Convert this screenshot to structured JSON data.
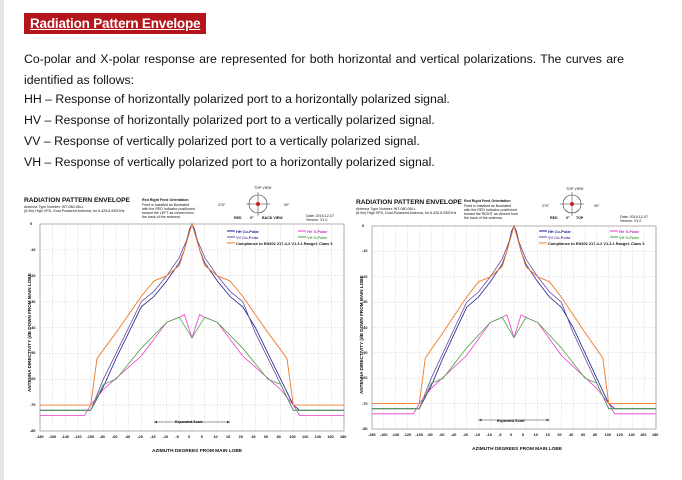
{
  "heading": "Radiation Pattern Envelope",
  "intro": "Co-polar and X-polar response are represented for both horizontal and vertical polarizations. The curves are identified as follows:",
  "definitions": [
    "HH – Response of horizontally polarized port to a horizontally polarized signal.",
    "HV – Response of horizontally polarized port to a vertically polarized signal.",
    "VV – Response of vertically polarized port to a vertically polarized signal.",
    "VH – Response of vertically polarized port to a horizontally polarized signal."
  ],
  "colors": {
    "heading_bg": "#b3151b",
    "hh": "#1a1f8c",
    "vv": "#6a4aa0",
    "hv": "#ee3ad0",
    "vh": "#48a848",
    "envelope": "#ec7a2a",
    "envelope_flat": "#d33a8a"
  },
  "chart_data": [
    {
      "type": "line",
      "title": "RADIATION PATTERN ENVELOPE",
      "subtitle_lines": [
        "Antenna Type Number: WT-080-06LL",
        "(6.0m) High XPD, Dual-Polarized Antenna, for 6.425-6.930GHz"
      ],
      "feed_title": "Red Right Feed Orientation",
      "feed_lines": [
        "Feed is installed as illustrated",
        "with the RED indicator positioned",
        "toward the LEFT as viewed from",
        "the back of the antenna."
      ],
      "top_label": "TOP VIEW",
      "side_labels": [
        "270°",
        "90°"
      ],
      "bottom_labels": [
        "RED",
        "0°",
        "BACK VIEW"
      ],
      "date": "Date: 2019-12-07",
      "version": "Version: V1.0",
      "legend": [
        "HH Co-Polar",
        "HV X-Polar",
        "VV Co-Polar",
        "VH X-Polar"
      ],
      "compliance": "Compliance to EN302 217-4-2 V1.3.1 Range1 Class 3",
      "expanded_scale": "Expanded Scale",
      "xlabel": "AZIMUTH DEGREES FROM MAIN LOBE",
      "ylabel": "ANTENNA DIRECTIVITY (dB DOWN FROM MAIN LOBE",
      "yticks": [
        "0",
        "-10",
        "-20",
        "-30",
        "-40",
        "-50",
        "-60",
        "-70",
        "-80"
      ],
      "xticks": [
        "-180",
        "-160",
        "-140",
        "-120",
        "-100",
        "-80",
        "-60",
        "-40",
        "-20",
        "-15",
        "-10",
        "-5",
        "0",
        "5",
        "10",
        "15",
        "20",
        "40",
        "60",
        "80",
        "100",
        "120",
        "140",
        "160",
        "180"
      ],
      "ylim": [
        -80,
        0
      ],
      "series": [
        {
          "name": "HH Co-Polar",
          "values": [
            [
              -180,
              -72
            ],
            [
              -100,
              -72
            ],
            [
              -80,
              -63
            ],
            [
              -60,
              -52
            ],
            [
              -40,
              -42
            ],
            [
              -20,
              -32
            ],
            [
              -15,
              -28
            ],
            [
              -10,
              -22
            ],
            [
              -5,
              -15
            ],
            [
              -3,
              -10
            ],
            [
              -1,
              -2
            ],
            [
              0,
              0
            ],
            [
              1,
              -2
            ],
            [
              3,
              -10
            ],
            [
              5,
              -15
            ],
            [
              10,
              -22
            ],
            [
              15,
              -28
            ],
            [
              20,
              -32
            ],
            [
              40,
              -40
            ],
            [
              60,
              -50
            ],
            [
              80,
              -60
            ],
            [
              100,
              -70
            ],
            [
              110,
              -72
            ],
            [
              180,
              -72
            ]
          ]
        },
        {
          "name": "VV Co-Polar",
          "values": [
            [
              -180,
              -72
            ],
            [
              -100,
              -72
            ],
            [
              -80,
              -60
            ],
            [
              -60,
              -50
            ],
            [
              -40,
              -40
            ],
            [
              -20,
              -30
            ],
            [
              -15,
              -26
            ],
            [
              -10,
              -20
            ],
            [
              -5,
              -13
            ],
            [
              -2,
              -6
            ],
            [
              0,
              0
            ],
            [
              2,
              -6
            ],
            [
              5,
              -13
            ],
            [
              10,
              -20
            ],
            [
              15,
              -26
            ],
            [
              20,
              -30
            ],
            [
              40,
              -42
            ],
            [
              60,
              -52
            ],
            [
              80,
              -62
            ],
            [
              100,
              -72
            ],
            [
              180,
              -72
            ]
          ]
        },
        {
          "name": "HV X-Polar",
          "values": [
            [
              -180,
              -74
            ],
            [
              -110,
              -74
            ],
            [
              -100,
              -70
            ],
            [
              -80,
              -64
            ],
            [
              -20,
              -51
            ],
            [
              -10,
              -38
            ],
            [
              -5,
              -36
            ],
            [
              -3,
              -35
            ],
            [
              0,
              -44
            ],
            [
              3,
              -35
            ],
            [
              5,
              -36
            ],
            [
              10,
              -38
            ],
            [
              20,
              -51
            ],
            [
              80,
              -64
            ],
            [
              100,
              -70
            ],
            [
              110,
              -74
            ],
            [
              180,
              -74
            ]
          ]
        },
        {
          "name": "VH X-Polar",
          "values": [
            [
              -180,
              -72
            ],
            [
              -100,
              -72
            ],
            [
              -80,
              -62
            ],
            [
              -60,
              -60
            ],
            [
              -20,
              -48
            ],
            [
              -10,
              -38
            ],
            [
              -5,
              -36
            ],
            [
              0,
              -44
            ],
            [
              5,
              -36
            ],
            [
              10,
              -38
            ],
            [
              20,
              -48
            ],
            [
              60,
              -60
            ],
            [
              80,
              -62
            ],
            [
              100,
              -72
            ],
            [
              180,
              -72
            ]
          ]
        },
        {
          "name": "Compliance to EN302 217-4-2 V1.3.1 Range1 Class 3",
          "values": [
            [
              -180,
              -70
            ],
            [
              -100,
              -70
            ],
            [
              -90,
              -52
            ],
            [
              -60,
              -42
            ],
            [
              -20,
              -28
            ],
            [
              -15,
              -22
            ],
            [
              -10,
              -20
            ],
            [
              -5,
              -16
            ],
            [
              -3,
              -10
            ],
            [
              0,
              0
            ],
            [
              3,
              -10
            ],
            [
              5,
              -16
            ],
            [
              10,
              -20
            ],
            [
              15,
              -22
            ],
            [
              20,
              -28
            ],
            [
              60,
              -42
            ],
            [
              90,
              -52
            ],
            [
              100,
              -70
            ],
            [
              180,
              -70
            ]
          ]
        }
      ]
    },
    {
      "type": "line",
      "title": "RADIATION PATTERN ENVELOPE",
      "subtitle_lines": [
        "Antenna Type Number: WT-080-06LL",
        "(6.0m) High XPD, Dual-Polarized Antenna, for 6.425-6.930GHz"
      ],
      "feed_title": "Red Right Feed Orientation",
      "feed_lines": [
        "Feed is installed as illustrated",
        "with the RED indicator positioned",
        "toward the RIGHT as viewed from",
        "the back of the antenna."
      ],
      "top_label": "TOP VIEW",
      "side_labels": [
        "270°",
        "90°"
      ],
      "bottom_labels": [
        "RED",
        "0°",
        "TOP"
      ],
      "date": "Date: 2019-12-07",
      "version": "Version: V1.0",
      "legend": [
        "HH Co-Polar",
        "HV X-Polar",
        "VV Co-Polar",
        "VH X-Polar"
      ],
      "compliance": "Compliance to EN302 217-4-2 V1.3.1 Range1 Class 3",
      "expanded_scale": "Expanded Scale",
      "xlabel": "AZIMUTH DEGREES FROM MAIN LOBE",
      "ylabel": "ANTENNA DIRECTIVITY (dB DOWN FROM MAIN LOBE",
      "yticks": [
        "0",
        "-10",
        "-20",
        "-30",
        "-40",
        "-50",
        "-60",
        "-70",
        "-80"
      ],
      "xticks": [
        "-180",
        "-160",
        "-140",
        "-120",
        "-100",
        "-80",
        "-60",
        "-40",
        "-20",
        "-15",
        "-10",
        "-5",
        "0",
        "5",
        "10",
        "15",
        "20",
        "40",
        "60",
        "80",
        "100",
        "120",
        "140",
        "160",
        "180"
      ],
      "ylim": [
        -80,
        0
      ],
      "series": [
        {
          "name": "HH Co-Polar",
          "values": [
            [
              -180,
              -72
            ],
            [
              -100,
              -72
            ],
            [
              -80,
              -63
            ],
            [
              -60,
              -52
            ],
            [
              -40,
              -42
            ],
            [
              -20,
              -32
            ],
            [
              -15,
              -28
            ],
            [
              -10,
              -22
            ],
            [
              -5,
              -15
            ],
            [
              -3,
              -10
            ],
            [
              -1,
              -2
            ],
            [
              0,
              0
            ],
            [
              1,
              -2
            ],
            [
              3,
              -10
            ],
            [
              5,
              -15
            ],
            [
              10,
              -22
            ],
            [
              15,
              -28
            ],
            [
              20,
              -32
            ],
            [
              40,
              -40
            ],
            [
              60,
              -50
            ],
            [
              80,
              -60
            ],
            [
              100,
              -70
            ],
            [
              110,
              -72
            ],
            [
              180,
              -72
            ]
          ]
        },
        {
          "name": "VV Co-Polar",
          "values": [
            [
              -180,
              -72
            ],
            [
              -100,
              -72
            ],
            [
              -80,
              -60
            ],
            [
              -60,
              -50
            ],
            [
              -40,
              -40
            ],
            [
              -20,
              -30
            ],
            [
              -15,
              -26
            ],
            [
              -10,
              -20
            ],
            [
              -5,
              -13
            ],
            [
              -2,
              -6
            ],
            [
              0,
              0
            ],
            [
              2,
              -6
            ],
            [
              5,
              -13
            ],
            [
              10,
              -20
            ],
            [
              15,
              -26
            ],
            [
              20,
              -30
            ],
            [
              40,
              -42
            ],
            [
              60,
              -52
            ],
            [
              80,
              -62
            ],
            [
              100,
              -72
            ],
            [
              180,
              -72
            ]
          ]
        },
        {
          "name": "HV X-Polar",
          "values": [
            [
              -180,
              -74
            ],
            [
              -110,
              -74
            ],
            [
              -100,
              -70
            ],
            [
              -80,
              -64
            ],
            [
              -20,
              -51
            ],
            [
              -10,
              -38
            ],
            [
              -5,
              -36
            ],
            [
              -3,
              -35
            ],
            [
              0,
              -44
            ],
            [
              3,
              -35
            ],
            [
              5,
              -36
            ],
            [
              10,
              -38
            ],
            [
              20,
              -51
            ],
            [
              80,
              -64
            ],
            [
              100,
              -70
            ],
            [
              110,
              -74
            ],
            [
              180,
              -74
            ]
          ]
        },
        {
          "name": "VH X-Polar",
          "values": [
            [
              -180,
              -72
            ],
            [
              -100,
              -72
            ],
            [
              -80,
              -62
            ],
            [
              -60,
              -60
            ],
            [
              -20,
              -48
            ],
            [
              -10,
              -38
            ],
            [
              -5,
              -36
            ],
            [
              0,
              -44
            ],
            [
              5,
              -36
            ],
            [
              10,
              -38
            ],
            [
              20,
              -48
            ],
            [
              60,
              -60
            ],
            [
              80,
              -62
            ],
            [
              100,
              -72
            ],
            [
              180,
              -72
            ]
          ]
        },
        {
          "name": "Compliance to EN302 217-4-2 V1.3.1 Range1 Class 3",
          "values": [
            [
              -180,
              -70
            ],
            [
              -100,
              -70
            ],
            [
              -90,
              -52
            ],
            [
              -60,
              -42
            ],
            [
              -20,
              -28
            ],
            [
              -15,
              -22
            ],
            [
              -10,
              -20
            ],
            [
              -5,
              -16
            ],
            [
              -3,
              -10
            ],
            [
              0,
              0
            ],
            [
              3,
              -10
            ],
            [
              5,
              -16
            ],
            [
              10,
              -20
            ],
            [
              15,
              -22
            ],
            [
              20,
              -28
            ],
            [
              60,
              -42
            ],
            [
              90,
              -52
            ],
            [
              100,
              -70
            ],
            [
              180,
              -70
            ]
          ]
        }
      ]
    }
  ]
}
